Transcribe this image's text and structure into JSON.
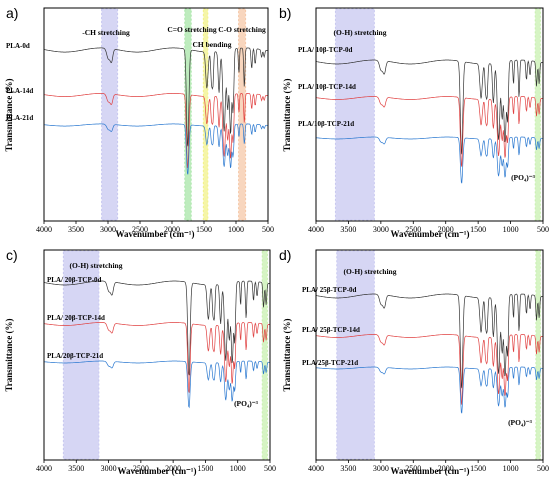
{
  "chart_data": [
    {
      "panel": "a)",
      "type": "line",
      "xlabel": "Wavenumber (cm⁻¹)",
      "ylabel": "Transmittance (%)",
      "xlim": [
        4000,
        500
      ],
      "xticks": [
        "4000",
        "3500",
        "3000",
        "2500",
        "2000",
        "1500",
        "1000",
        "500"
      ],
      "bands": [
        {
          "label": "-CH stretching",
          "from": 3100,
          "to": 2850,
          "color": "#c8c8f0"
        },
        {
          "label": "C=O stretching",
          "from": 1800,
          "to": 1700,
          "color": "#a8e6a8"
        },
        {
          "label": "CH bending",
          "from": 1510,
          "to": 1440,
          "color": "#f2f28a"
        },
        {
          "label": "C-O stretching",
          "from": 960,
          "to": 850,
          "color": "#f5c8a8"
        }
      ],
      "series": [
        {
          "name": "PLA-0d",
          "color": "#333333"
        },
        {
          "name": "PLA-14d",
          "color": "#e04040"
        },
        {
          "name": "PLA-21d",
          "color": "#2a78d0"
        }
      ]
    },
    {
      "panel": "b)",
      "type": "line",
      "xlabel": "Wavenumber (cm⁻¹)",
      "ylabel": "Transmittance (%)",
      "xlim": [
        4000,
        500
      ],
      "xticks": [
        "4000",
        "3500",
        "3000",
        "2500",
        "2000",
        "1500",
        "1000",
        "500"
      ],
      "bands": [
        {
          "label": "(O-H) stretching",
          "from": 3700,
          "to": 3100,
          "color": "#c8c8f0"
        },
        {
          "label": "(PO₄)⁻³",
          "from": 620,
          "to": 540,
          "color": "#c8f0b0"
        }
      ],
      "series": [
        {
          "name": "PLA/ 10β-TCP-0d",
          "color": "#333333"
        },
        {
          "name": "PLA/ 10β-TCP-14d",
          "color": "#e04040"
        },
        {
          "name": "PLA/10β-TCP-21d",
          "color": "#2a78d0"
        }
      ]
    },
    {
      "panel": "c)",
      "type": "line",
      "xlabel": "Wavenumber (cm⁻¹)",
      "ylabel": "Transmittance (%)",
      "xlim": [
        4000,
        500
      ],
      "xticks": [
        "4000",
        "3500",
        "3000",
        "2500",
        "2000",
        "1500",
        "1000",
        "500"
      ],
      "bands": [
        {
          "label": "(O-H) stretching",
          "from": 3700,
          "to": 3150,
          "color": "#c8c8f0"
        },
        {
          "label": "(PO₄)⁻³",
          "from": 620,
          "to": 540,
          "color": "#c8f0b0"
        }
      ],
      "series": [
        {
          "name": "PLA/ 20β-TCP-0d",
          "color": "#333333"
        },
        {
          "name": "PLA/ 20β-TCP-14d",
          "color": "#e04040"
        },
        {
          "name": "PLA/20β-TCP-21d",
          "color": "#2a78d0"
        }
      ]
    },
    {
      "panel": "d)",
      "type": "line",
      "xlabel": "Wavenumber (cm⁻¹)",
      "ylabel": "Transmittance (%)",
      "xlim": [
        4000,
        500
      ],
      "xticks": [
        "4000",
        "3500",
        "3000",
        "2500",
        "2000",
        "1500",
        "1000",
        "500"
      ],
      "bands": [
        {
          "label": "(O-H) stretching",
          "from": 3680,
          "to": 3100,
          "color": "#c8c8f0"
        },
        {
          "label": "(PO₄)⁻³",
          "from": 610,
          "to": 540,
          "color": "#c8f0b0"
        }
      ],
      "series": [
        {
          "name": "PLA/ 25β-TCP-0d",
          "color": "#333333"
        },
        {
          "name": "PLA/ 25β-TCP-14d",
          "color": "#e04040"
        },
        {
          "name": "PLA/25β-TCP-21d",
          "color": "#2a78d0"
        }
      ]
    }
  ]
}
